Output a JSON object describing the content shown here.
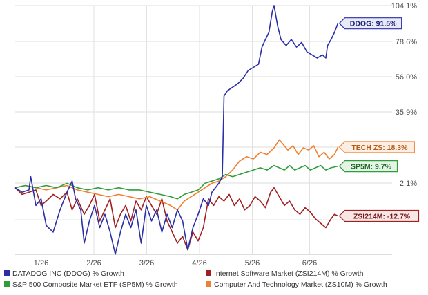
{
  "chart_data": {
    "type": "line",
    "title": "",
    "xlabel": "",
    "ylabel": "",
    "ylim": [
      -30,
      104.1
    ],
    "yticks": [
      104.1,
      78.6,
      56.0,
      35.9,
      18.3,
      2.1
    ],
    "yticks_labels": [
      "104.1%",
      "78.6%",
      "56.0%",
      "35.9%",
      "",
      "2.1%"
    ],
    "x_ticks": [
      {
        "t": 0.075,
        "label": "1/26"
      },
      {
        "t": 0.228,
        "label": "2/26"
      },
      {
        "t": 0.381,
        "label": "3/26"
      },
      {
        "t": 0.534,
        "label": "4/26"
      },
      {
        "t": 0.687,
        "label": "5/26"
      },
      {
        "t": 0.853,
        "label": "6/26"
      }
    ],
    "series": [
      {
        "name": "DATADOG INC (DDOG) % Growth",
        "color": "#2a2fa8",
        "end_tag": "DDOG: 91.5%",
        "points": [
          [
            0,
            0
          ],
          [
            0.02,
            -2
          ],
          [
            0.04,
            -1
          ],
          [
            0.045,
            5
          ],
          [
            0.06,
            -8
          ],
          [
            0.075,
            -5
          ],
          [
            0.09,
            -17
          ],
          [
            0.11,
            -20
          ],
          [
            0.13,
            -10
          ],
          [
            0.15,
            -2
          ],
          [
            0.165,
            3
          ],
          [
            0.175,
            -5
          ],
          [
            0.19,
            -10
          ],
          [
            0.2,
            -25
          ],
          [
            0.215,
            -15
          ],
          [
            0.23,
            -8
          ],
          [
            0.245,
            -18
          ],
          [
            0.26,
            -12
          ],
          [
            0.275,
            -20
          ],
          [
            0.29,
            -30
          ],
          [
            0.305,
            -20
          ],
          [
            0.32,
            -12
          ],
          [
            0.335,
            -18
          ],
          [
            0.35,
            -10
          ],
          [
            0.365,
            -25
          ],
          [
            0.38,
            -8
          ],
          [
            0.395,
            -15
          ],
          [
            0.41,
            -10
          ],
          [
            0.425,
            -20
          ],
          [
            0.44,
            -12
          ],
          [
            0.455,
            -18
          ],
          [
            0.47,
            -10
          ],
          [
            0.485,
            -15
          ],
          [
            0.5,
            -28
          ],
          [
            0.515,
            -18
          ],
          [
            0.53,
            -12
          ],
          [
            0.545,
            -5
          ],
          [
            0.56,
            -8
          ],
          [
            0.57,
            -2
          ],
          [
            0.58,
            0
          ],
          [
            0.59,
            2
          ],
          [
            0.6,
            5
          ],
          [
            0.605,
            45
          ],
          [
            0.615,
            48
          ],
          [
            0.63,
            50
          ],
          [
            0.645,
            52
          ],
          [
            0.66,
            55
          ],
          [
            0.675,
            60
          ],
          [
            0.69,
            62
          ],
          [
            0.705,
            64
          ],
          [
            0.715,
            75
          ],
          [
            0.725,
            80
          ],
          [
            0.735,
            85
          ],
          [
            0.745,
            100
          ],
          [
            0.75,
            104.1
          ],
          [
            0.76,
            90
          ],
          [
            0.77,
            80
          ],
          [
            0.785,
            76
          ],
          [
            0.8,
            80
          ],
          [
            0.815,
            75
          ],
          [
            0.83,
            78
          ],
          [
            0.845,
            72
          ],
          [
            0.86,
            70
          ],
          [
            0.875,
            68
          ],
          [
            0.89,
            70
          ],
          [
            0.9,
            68
          ],
          [
            0.905,
            76
          ],
          [
            0.915,
            80
          ],
          [
            0.925,
            85
          ],
          [
            0.935,
            91.5
          ]
        ]
      },
      {
        "name": "Internet Software Market (ZSI214M) % Growth",
        "color": "#a02020",
        "end_tag": "ZSI214M: -12.7%",
        "points": [
          [
            0,
            0
          ],
          [
            0.02,
            -3
          ],
          [
            0.04,
            -2
          ],
          [
            0.06,
            -1
          ],
          [
            0.075,
            -8
          ],
          [
            0.09,
            -6
          ],
          [
            0.11,
            -3
          ],
          [
            0.13,
            -5
          ],
          [
            0.15,
            -2
          ],
          [
            0.165,
            -10
          ],
          [
            0.18,
            -5
          ],
          [
            0.2,
            -12
          ],
          [
            0.215,
            -8
          ],
          [
            0.23,
            -3
          ],
          [
            0.245,
            -15
          ],
          [
            0.26,
            -10
          ],
          [
            0.275,
            -5
          ],
          [
            0.29,
            -18
          ],
          [
            0.305,
            -12
          ],
          [
            0.32,
            -8
          ],
          [
            0.335,
            -15
          ],
          [
            0.35,
            -6
          ],
          [
            0.365,
            -10
          ],
          [
            0.38,
            -4
          ],
          [
            0.395,
            -8
          ],
          [
            0.41,
            -12
          ],
          [
            0.425,
            -5
          ],
          [
            0.44,
            -15
          ],
          [
            0.455,
            -20
          ],
          [
            0.47,
            -25
          ],
          [
            0.485,
            -22
          ],
          [
            0.5,
            -28
          ],
          [
            0.515,
            -20
          ],
          [
            0.53,
            -24
          ],
          [
            0.545,
            -18
          ],
          [
            0.56,
            -5
          ],
          [
            0.575,
            -8
          ],
          [
            0.59,
            -4
          ],
          [
            0.605,
            -6
          ],
          [
            0.62,
            -3
          ],
          [
            0.635,
            -8
          ],
          [
            0.65,
            -5
          ],
          [
            0.665,
            -10
          ],
          [
            0.68,
            -8
          ],
          [
            0.695,
            -4
          ],
          [
            0.71,
            -6
          ],
          [
            0.725,
            -9
          ],
          [
            0.74,
            -2
          ],
          [
            0.75,
            0
          ],
          [
            0.765,
            -4
          ],
          [
            0.78,
            -8
          ],
          [
            0.795,
            -6
          ],
          [
            0.81,
            -10
          ],
          [
            0.825,
            -12
          ],
          [
            0.84,
            -9
          ],
          [
            0.855,
            -11
          ],
          [
            0.87,
            -14
          ],
          [
            0.885,
            -16
          ],
          [
            0.9,
            -18
          ],
          [
            0.915,
            -14
          ],
          [
            0.925,
            -12
          ],
          [
            0.935,
            -12.7
          ]
        ]
      },
      {
        "name": "S&P 500 Composite Market ETF (SP5M) % Growth",
        "color": "#2e9e3a",
        "end_tag": "SP5M: 9.7%",
        "points": [
          [
            0,
            0
          ],
          [
            0.03,
            1
          ],
          [
            0.06,
            0
          ],
          [
            0.09,
            1
          ],
          [
            0.12,
            0
          ],
          [
            0.15,
            2
          ],
          [
            0.18,
            0
          ],
          [
            0.21,
            -1
          ],
          [
            0.24,
            0
          ],
          [
            0.27,
            -1
          ],
          [
            0.3,
            0
          ],
          [
            0.33,
            -1
          ],
          [
            0.36,
            -1
          ],
          [
            0.39,
            -2
          ],
          [
            0.42,
            -3
          ],
          [
            0.45,
            -4
          ],
          [
            0.47,
            -5
          ],
          [
            0.49,
            -3
          ],
          [
            0.51,
            -2
          ],
          [
            0.53,
            -1
          ],
          [
            0.55,
            2
          ],
          [
            0.57,
            3
          ],
          [
            0.59,
            4
          ],
          [
            0.61,
            6
          ],
          [
            0.63,
            5
          ],
          [
            0.65,
            6
          ],
          [
            0.67,
            7
          ],
          [
            0.69,
            8
          ],
          [
            0.71,
            9
          ],
          [
            0.73,
            8
          ],
          [
            0.75,
            10
          ],
          [
            0.765,
            9
          ],
          [
            0.78,
            8
          ],
          [
            0.795,
            10
          ],
          [
            0.81,
            8
          ],
          [
            0.825,
            9
          ],
          [
            0.84,
            10
          ],
          [
            0.855,
            8
          ],
          [
            0.87,
            9
          ],
          [
            0.885,
            10
          ],
          [
            0.9,
            8
          ],
          [
            0.915,
            9
          ],
          [
            0.935,
            9.7
          ]
        ]
      },
      {
        "name": "Computer And Technology Market (ZS10M) % Growth",
        "color": "#f07f30",
        "end_tag": "TECH ZS: 18.3%",
        "points": [
          [
            0,
            0
          ],
          [
            0.03,
            1
          ],
          [
            0.06,
            0
          ],
          [
            0.09,
            -1
          ],
          [
            0.12,
            0
          ],
          [
            0.15,
            1
          ],
          [
            0.18,
            -1
          ],
          [
            0.21,
            -2
          ],
          [
            0.24,
            -3
          ],
          [
            0.27,
            -4
          ],
          [
            0.3,
            -3
          ],
          [
            0.33,
            -4
          ],
          [
            0.36,
            -5
          ],
          [
            0.39,
            -4
          ],
          [
            0.42,
            -6
          ],
          [
            0.45,
            -8
          ],
          [
            0.47,
            -10
          ],
          [
            0.49,
            -6
          ],
          [
            0.51,
            -4
          ],
          [
            0.53,
            -2
          ],
          [
            0.55,
            0
          ],
          [
            0.57,
            2
          ],
          [
            0.59,
            3
          ],
          [
            0.61,
            5
          ],
          [
            0.63,
            8
          ],
          [
            0.65,
            12
          ],
          [
            0.67,
            14
          ],
          [
            0.69,
            13
          ],
          [
            0.71,
            16
          ],
          [
            0.73,
            15
          ],
          [
            0.75,
            18
          ],
          [
            0.765,
            22
          ],
          [
            0.775,
            20
          ],
          [
            0.79,
            17
          ],
          [
            0.805,
            19
          ],
          [
            0.82,
            15
          ],
          [
            0.835,
            18
          ],
          [
            0.85,
            17
          ],
          [
            0.865,
            19
          ],
          [
            0.88,
            14
          ],
          [
            0.895,
            16
          ],
          [
            0.91,
            13
          ],
          [
            0.925,
            15
          ],
          [
            0.935,
            18.3
          ]
        ]
      }
    ],
    "legend": {
      "placement": "bottom",
      "entries": [
        {
          "label": "DATADOG INC (DDOG) % Growth",
          "color": "#2a2fa8"
        },
        {
          "label": "Internet Software Market (ZSI214M) % Growth",
          "color": "#a02020"
        },
        {
          "label": "S&P 500 Composite Market ETF (SP5M) % Growth",
          "color": "#2e9e3a"
        },
        {
          "label": "Computer And Technology Market (ZS10M) % Growth",
          "color": "#f07f30"
        }
      ]
    }
  }
}
